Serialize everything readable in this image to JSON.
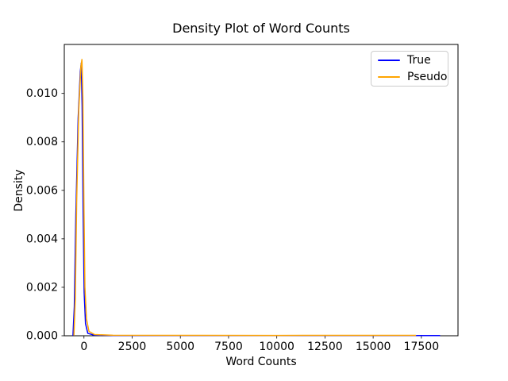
{
  "figure": {
    "background": "#ffffff",
    "axes_background": "#ffffff",
    "spine_color": "#000000",
    "tick_color": "#000000",
    "text_color": "#000000"
  },
  "chart_data": {
    "type": "line",
    "title": "Density Plot of Word Counts",
    "xlabel": "Word Counts",
    "ylabel": "Density",
    "xlim": [
      -1020,
      19400
    ],
    "ylim": [
      0,
      0.01202
    ],
    "grid": false,
    "xticks": {
      "values": [
        0,
        2500,
        5000,
        7500,
        10000,
        12500,
        15000,
        17500
      ],
      "labels": [
        "0",
        "2500",
        "5000",
        "7500",
        "10000",
        "12500",
        "15000",
        "17500"
      ]
    },
    "yticks": {
      "values": [
        0,
        0.002,
        0.004,
        0.006,
        0.008,
        0.01
      ],
      "labels": [
        "0.000",
        "0.002",
        "0.004",
        "0.006",
        "0.008",
        "0.010"
      ]
    },
    "legend": {
      "position": "upper right",
      "entries": [
        {
          "label": "True",
          "color": "#0000ff"
        },
        {
          "label": "Pseudo",
          "color": "#ffa500"
        }
      ]
    },
    "series": [
      {
        "name": "True",
        "color": "#0000ff",
        "line_width": 1.5,
        "points": [
          [
            -570,
            2e-05
          ],
          [
            -500,
            0.0012
          ],
          [
            -420,
            0.005
          ],
          [
            -300,
            0.009
          ],
          [
            -190,
            0.0109
          ],
          [
            -140,
            0.01125
          ],
          [
            -95,
            0.0095
          ],
          [
            -40,
            0.005
          ],
          [
            10,
            0.0018
          ],
          [
            80,
            0.0005
          ],
          [
            200,
            0.0001
          ],
          [
            500,
            3e-05
          ],
          [
            1500,
            1e-05
          ],
          [
            5000,
            8e-06
          ],
          [
            10000,
            7e-06
          ],
          [
            15000,
            8e-06
          ],
          [
            18450,
            1e-05
          ]
        ]
      },
      {
        "name": "Pseudo",
        "color": "#ffa500",
        "line_width": 1.5,
        "points": [
          [
            -520,
            3e-05
          ],
          [
            -450,
            0.0015
          ],
          [
            -380,
            0.0055
          ],
          [
            -270,
            0.0093
          ],
          [
            -160,
            0.0111
          ],
          [
            -105,
            0.0114
          ],
          [
            -55,
            0.0098
          ],
          [
            0,
            0.0052
          ],
          [
            50,
            0.002
          ],
          [
            130,
            0.0007
          ],
          [
            260,
            0.00018
          ],
          [
            550,
            5e-05
          ],
          [
            1500,
            2e-05
          ],
          [
            5000,
            1.5e-05
          ],
          [
            10000,
            1.4e-05
          ],
          [
            17200,
            1.8e-05
          ]
        ]
      }
    ]
  }
}
